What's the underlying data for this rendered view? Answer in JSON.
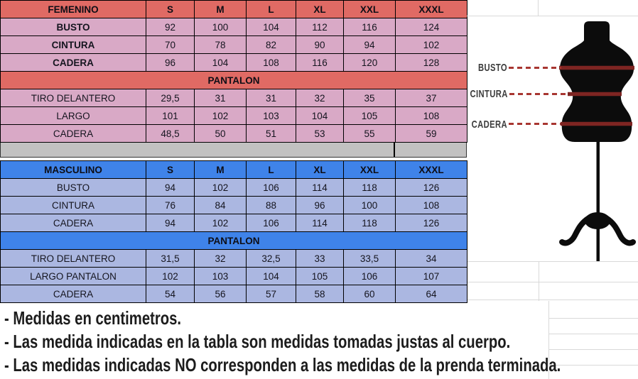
{
  "colors": {
    "female_header": "#e06a64",
    "female_row": "#d9a9c6",
    "male_header": "#3f83e9",
    "male_row": "#abb7e1",
    "separator_row": "#c2c1c1",
    "sheet_gridline": "#d9d9d9",
    "measure_line": "#a83631",
    "measure_band": "#7e2522",
    "mannequin_fill": "#0c0c0c",
    "cell_text": "#15151f",
    "note_text": "#1c1c1c",
    "measure_label_text": "#3c3c3c"
  },
  "sections": [
    {
      "name": "femenino",
      "title": "FEMENINO",
      "sizes": [
        "S",
        "M",
        "L",
        "XL",
        "XXL",
        "XXXL"
      ],
      "measure_rows": [
        {
          "label": "BUSTO",
          "values": [
            "92",
            "100",
            "104",
            "112",
            "116",
            "124"
          ]
        },
        {
          "label": "CINTURA",
          "values": [
            "70",
            "78",
            "82",
            "90",
            "94",
            "102"
          ]
        },
        {
          "label": "CADERA",
          "values": [
            "96",
            "104",
            "108",
            "116",
            "120",
            "128"
          ]
        }
      ],
      "subheader": "PANTALON",
      "pant_rows": [
        {
          "label": "TIRO DELANTERO",
          "values": [
            "29,5",
            "31",
            "31",
            "32",
            "35",
            "37"
          ]
        },
        {
          "label": "LARGO",
          "values": [
            "101",
            "102",
            "103",
            "104",
            "105",
            "108"
          ]
        },
        {
          "label": "CADERA",
          "values": [
            "48,5",
            "50",
            "51",
            "53",
            "55",
            "59"
          ]
        }
      ]
    },
    {
      "name": "masculino",
      "title": "MASCULINO",
      "sizes": [
        "S",
        "M",
        "L",
        "XL",
        "XXL",
        "XXXL"
      ],
      "measure_rows": [
        {
          "label": "BUSTO",
          "values": [
            "94",
            "102",
            "106",
            "114",
            "118",
            "126"
          ]
        },
        {
          "label": "CINTURA",
          "values": [
            "76",
            "84",
            "88",
            "96",
            "100",
            "108"
          ]
        },
        {
          "label": "CADERA",
          "values": [
            "94",
            "102",
            "106",
            "114",
            "118",
            "126"
          ]
        }
      ],
      "subheader": "PANTALON",
      "pant_rows": [
        {
          "label": "TIRO DELANTERO",
          "values": [
            "31,5",
            "32",
            "32,5",
            "33",
            "33,5",
            "34"
          ]
        },
        {
          "label": "LARGO PANTALON",
          "values": [
            "102",
            "103",
            "104",
            "105",
            "106",
            "107"
          ]
        },
        {
          "label": "CADERA",
          "values": [
            "54",
            "56",
            "57",
            "58",
            "60",
            "64"
          ]
        }
      ]
    }
  ],
  "mannequin": {
    "labels": [
      "BUSTO",
      "CINTURA",
      "CADERA"
    ]
  },
  "notes": [
    "- Medidas en centimetros.",
    "- Las medida indicadas en la tabla son medidas tomadas justas al cuerpo.",
    "- Las medidas indicadas NO corresponden a las medidas de la prenda terminada."
  ]
}
